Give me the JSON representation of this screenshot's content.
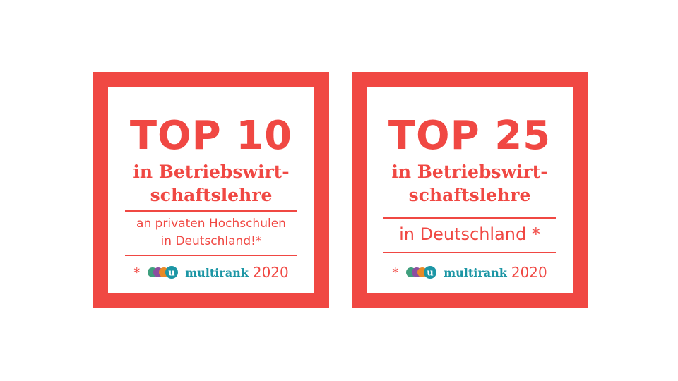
{
  "colors": {
    "accent": "#f04843",
    "brand_teal": "#1c96a5",
    "logo_circles": [
      "#3f9f7d",
      "#8c4ea0",
      "#e98a27",
      "#1c96a5"
    ]
  },
  "badges": [
    {
      "headline": "TOP 10",
      "subject_line1": "in Betriebswirt-",
      "subject_line2": "schaftslehre",
      "scope_line1": "an privaten Hochschulen",
      "scope_line2": "in Deutschland!*",
      "footnote_mark": "*",
      "logo_letter": "u",
      "brand": "multirank",
      "year": "2020"
    },
    {
      "headline": "TOP 25",
      "subject_line1": "in Betriebswirt-",
      "subject_line2": "schaftslehre",
      "scope_line1": "in Deutschland *",
      "footnote_mark": "*",
      "logo_letter": "u",
      "brand": "multirank",
      "year": "2020"
    }
  ]
}
